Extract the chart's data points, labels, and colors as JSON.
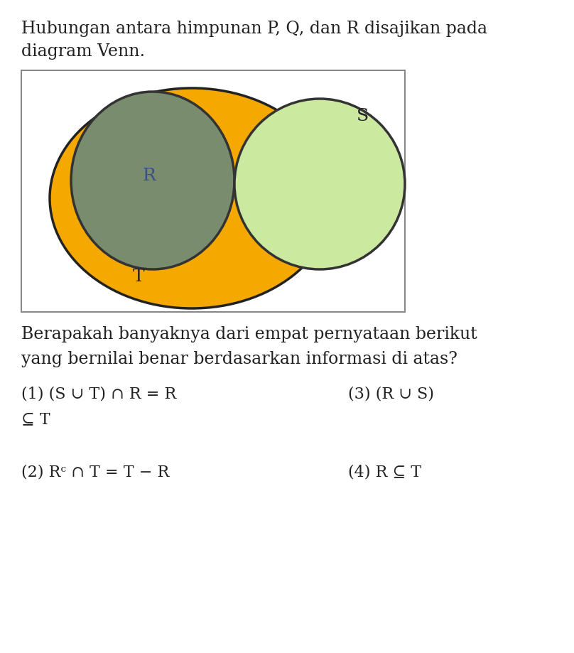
{
  "bg_color": "#ffffff",
  "title_line1": "Hubungan antara himpunan P, Q, dan R disajikan pada",
  "title_line2": "diagram Venn.",
  "question_line1": "Berapakah banyaknya dari empat pernyataan berikut",
  "question_line2": "yang bernilai benar berdasarkan informasi di atas?",
  "venn_bg": "#ffffff",
  "venn_border": "#888888",
  "T_color": "#f5a800",
  "T_edge": "#222222",
  "R_color": "#7a8c6e",
  "R_edge": "#333333",
  "S_color": "#cce9a0",
  "S_edge": "#333333",
  "T_label": "T",
  "R_label": "R",
  "S_label": "S",
  "R_label_color": "#3a5080",
  "text_color": "#222222",
  "title_fontsize": 17,
  "stmt_fontsize": 16,
  "label_fontsize": 18
}
